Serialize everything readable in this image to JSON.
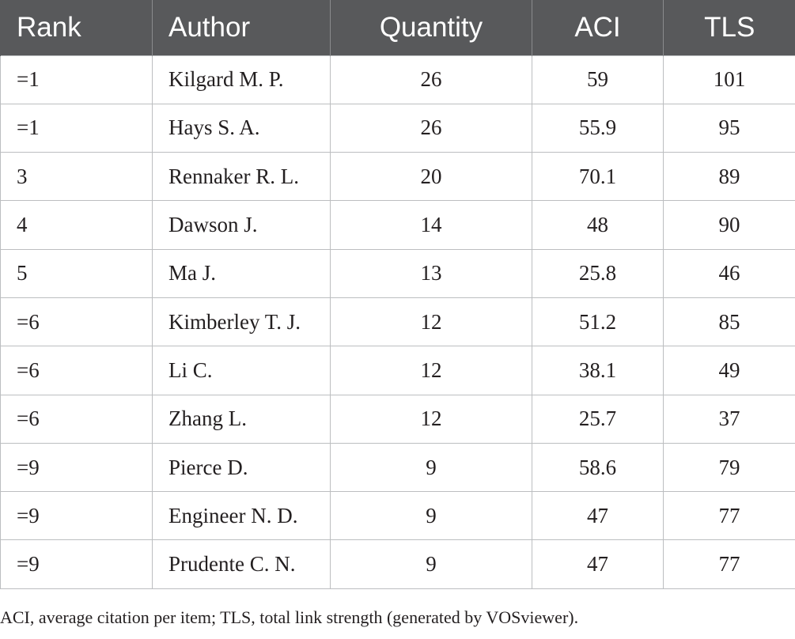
{
  "table": {
    "headers": [
      "Rank",
      "Author",
      "Quantity",
      "ACI",
      "TLS"
    ],
    "rows": [
      [
        "=1",
        "Kilgard M. P.",
        "26",
        "59",
        "101"
      ],
      [
        "=1",
        "Hays S. A.",
        "26",
        "55.9",
        "95"
      ],
      [
        "3",
        "Rennaker R. L.",
        "20",
        "70.1",
        "89"
      ],
      [
        "4",
        "Dawson J.",
        "14",
        "48",
        "90"
      ],
      [
        "5",
        "Ma J.",
        "13",
        "25.8",
        "46"
      ],
      [
        "=6",
        "Kimberley T. J.",
        "12",
        "51.2",
        "85"
      ],
      [
        "=6",
        "Li C.",
        "12",
        "38.1",
        "49"
      ],
      [
        "=6",
        "Zhang L.",
        "12",
        "25.7",
        "37"
      ],
      [
        "=9",
        "Pierce D.",
        "9",
        "58.6",
        "79"
      ],
      [
        "=9",
        "Engineer N. D.",
        "9",
        "47",
        "77"
      ],
      [
        "=9",
        "Prudente C. N.",
        "9",
        "47",
        "77"
      ]
    ]
  },
  "footnote": "ACI, average citation per item; TLS, total link strength (generated by VOSviewer).",
  "colors": {
    "header_bg": "#58595b",
    "header_text": "#ffffff",
    "grid": "#bcbec0",
    "body_text": "#231f20"
  }
}
